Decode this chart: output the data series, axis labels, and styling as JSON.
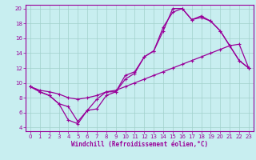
{
  "xlabel": "Windchill (Refroidissement éolien,°C)",
  "bg_color": "#c8eef0",
  "grid_color": "#a0d0cc",
  "line_color": "#990099",
  "xlim": [
    -0.5,
    23.5
  ],
  "ylim": [
    3.5,
    20.5
  ],
  "xticks": [
    0,
    1,
    2,
    3,
    4,
    5,
    6,
    7,
    8,
    9,
    10,
    11,
    12,
    13,
    14,
    15,
    16,
    17,
    18,
    19,
    20,
    21,
    22,
    23
  ],
  "yticks": [
    4,
    6,
    8,
    10,
    12,
    14,
    16,
    18,
    20
  ],
  "line1_x": [
    0,
    1,
    2,
    3,
    4,
    5,
    6,
    7,
    8,
    9,
    10,
    11,
    12,
    13,
    14,
    15,
    16,
    17,
    18,
    19,
    20,
    21,
    22,
    23
  ],
  "line1_y": [
    9.5,
    8.8,
    8.3,
    7.2,
    5.0,
    4.5,
    6.3,
    6.5,
    8.3,
    8.8,
    11.0,
    11.5,
    13.5,
    14.3,
    17.0,
    20.0,
    20.0,
    18.5,
    18.8,
    18.3,
    17.0,
    15.0,
    13.0,
    12.0
  ],
  "line2_x": [
    0,
    1,
    2,
    3,
    4,
    5,
    6,
    7,
    8,
    9,
    10,
    11,
    12,
    13,
    14,
    15,
    16,
    17,
    18,
    19,
    20,
    21,
    22,
    23
  ],
  "line2_y": [
    9.5,
    8.8,
    8.3,
    7.2,
    6.8,
    4.8,
    6.3,
    7.8,
    8.8,
    8.8,
    10.5,
    11.3,
    13.5,
    14.3,
    17.5,
    19.5,
    20.0,
    18.5,
    19.0,
    18.3,
    17.0,
    15.0,
    13.0,
    12.0
  ],
  "line3_x": [
    0,
    1,
    2,
    3,
    4,
    5,
    6,
    7,
    8,
    9,
    10,
    11,
    12,
    13,
    14,
    15,
    16,
    17,
    18,
    19,
    20,
    21,
    22,
    23
  ],
  "line3_y": [
    9.5,
    9.0,
    8.8,
    8.5,
    8.0,
    7.8,
    8.0,
    8.3,
    8.8,
    9.0,
    9.5,
    10.0,
    10.5,
    11.0,
    11.5,
    12.0,
    12.5,
    13.0,
    13.5,
    14.0,
    14.5,
    15.0,
    15.2,
    12.0
  ]
}
